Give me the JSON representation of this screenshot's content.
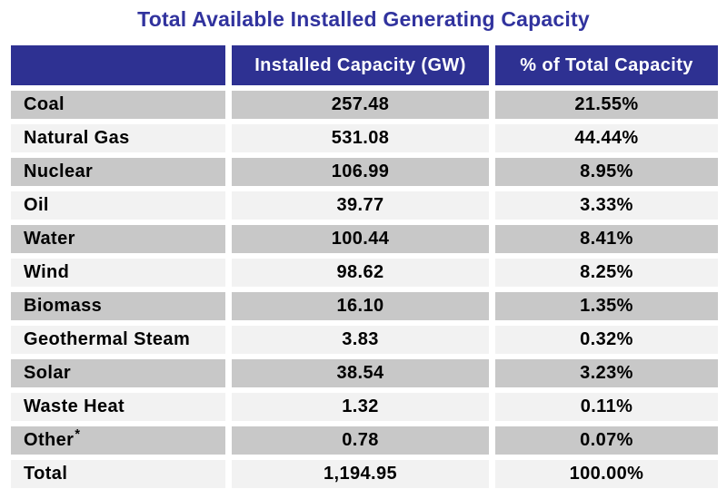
{
  "title": "Total Available Installed Generating Capacity",
  "colors": {
    "title_text": "#31339E",
    "header_bg": "#2E3192",
    "header_text": "#FFFFFF",
    "row_dark": "#C8C8C8",
    "row_light": "#F2F2F2",
    "cell_text": "#000000",
    "background": "#FFFFFF"
  },
  "table": {
    "headers": {
      "category": "",
      "capacity": "Installed Capacity (GW)",
      "percent": "% of Total Capacity"
    },
    "rows": [
      {
        "fuel": "Coal",
        "capacity": "257.48",
        "percent": "21.55%"
      },
      {
        "fuel": "Natural Gas",
        "capacity": "531.08",
        "percent": "44.44%"
      },
      {
        "fuel": "Nuclear",
        "capacity": "106.99",
        "percent": "8.95%"
      },
      {
        "fuel": "Oil",
        "capacity": "39.77",
        "percent": "3.33%"
      },
      {
        "fuel": "Water",
        "capacity": "100.44",
        "percent": "8.41%"
      },
      {
        "fuel": "Wind",
        "capacity": "98.62",
        "percent": "8.25%"
      },
      {
        "fuel": "Biomass",
        "capacity": "16.10",
        "percent": "1.35%"
      },
      {
        "fuel": "Geothermal Steam",
        "capacity": "3.83",
        "percent": "0.32%"
      },
      {
        "fuel": "Solar",
        "capacity": "38.54",
        "percent": "3.23%"
      },
      {
        "fuel": "Waste Heat",
        "capacity": "1.32",
        "percent": "0.11%"
      },
      {
        "fuel": "Other",
        "note": "*",
        "capacity": "0.78",
        "percent": "0.07%"
      },
      {
        "fuel": "Total",
        "capacity": "1,194.95",
        "percent": "100.00%"
      }
    ]
  },
  "chart_data": {
    "type": "table",
    "title": "Total Available Installed Generating Capacity",
    "columns": [
      "",
      "Installed Capacity (GW)",
      "% of Total Capacity"
    ],
    "rows": [
      [
        "Coal",
        257.48,
        "21.55%"
      ],
      [
        "Natural Gas",
        531.08,
        "44.44%"
      ],
      [
        "Nuclear",
        106.99,
        "8.95%"
      ],
      [
        "Oil",
        39.77,
        "3.33%"
      ],
      [
        "Water",
        100.44,
        "8.41%"
      ],
      [
        "Wind",
        98.62,
        "8.25%"
      ],
      [
        "Biomass",
        16.1,
        "1.35%"
      ],
      [
        "Geothermal Steam",
        3.83,
        "0.32%"
      ],
      [
        "Solar",
        38.54,
        "3.23%"
      ],
      [
        "Waste Heat",
        1.32,
        "0.11%"
      ],
      [
        "Other*",
        0.78,
        "0.07%"
      ],
      [
        "Total",
        1194.95,
        "100.00%"
      ]
    ]
  }
}
